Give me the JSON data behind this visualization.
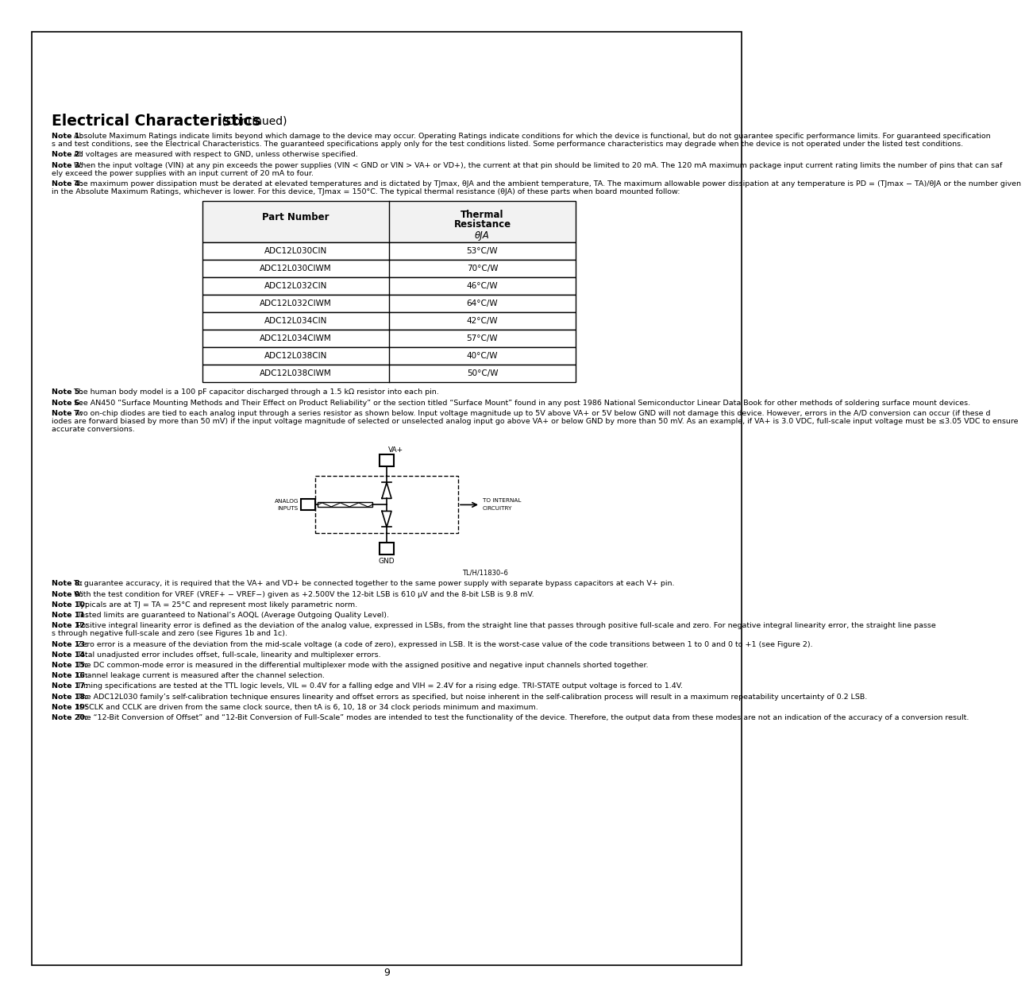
{
  "title_bold": "Electrical Characteristics",
  "title_normal": " (Continued)",
  "page_number": "9",
  "bg_color": "#ffffff",
  "border_color": "#000000",
  "table_rows": [
    [
      "ADC12L030CIN",
      "53°C/W"
    ],
    [
      "ADC12L030CIWM",
      "70°C/W"
    ],
    [
      "ADC12L032CIN",
      "46°C/W"
    ],
    [
      "ADC12L032CIWM",
      "64°C/W"
    ],
    [
      "ADC12L034CIN",
      "42°C/W"
    ],
    [
      "ADC12L034CIWM",
      "57°C/W"
    ],
    [
      "ADC12L038CIN",
      "40°C/W"
    ],
    [
      "ADC12L038CIWM",
      "50°C/W"
    ]
  ],
  "circuit_label": "TL/H/11830–6",
  "note1_label": "Note 1:",
  "note1_text": " Absolute Maximum Ratings indicate limits beyond which damage to the device may occur. Operating Ratings indicate conditions for which the device is functional, but do not guarantee specific performance limits. For guaranteed specifications and test conditions, see the Electrical Characteristics. The guaranteed specifications apply only for the test conditions listed. Some performance characteristics may degrade when the device is not operated under the listed test conditions.",
  "note2_label": "Note 2:",
  "note2_text": " All voltages are measured with respect to GND, unless otherwise specified.",
  "note3_label": "Note 3:",
  "note3_text": " When the input voltage (VIN) at any pin exceeds the power supplies (VIN < GND or VIN > VA+ or VD+), the current at that pin should be limited to 20 mA. The 120 mA maximum package input current rating limits the number of pins that can safely exceed the power supplies with an input current of 20 mA to four.",
  "note4_label": "Note 4:",
  "note4_text": " The maximum power dissipation must be derated at elevated temperatures and is dictated by TJmax, θJA and the ambient temperature, TA. The maximum allowable power dissipation at any temperature is PD = (TJmax − TA)/θJA or the number given in the Absolute Maximum Ratings, whichever is lower. For this device, TJmax = 150°C. The typical thermal resistance (θJA) of these parts when board mounted follow:",
  "note5_label": "Note 5:",
  "note5_text": " The human body model is a 100 pF capacitor discharged through a 1.5 kΩ resistor into each pin.",
  "note6_label": "Note 6:",
  "note6_text": " See AN450 “Surface Mounting Methods and Their Effect on Product Reliability” or the section titled “Surface Mount” found in any post 1986 National Semiconductor Linear Data Book for other methods of soldering surface mount devices.",
  "note7_label": "Note 7:",
  "note7_text": " Two on-chip diodes are tied to each analog input through a series resistor as shown below. Input voltage magnitude up to 5V above VA+ or 5V below GND will not damage this device. However, errors in the A/D conversion can occur (if these diodes are forward biased by more than 50 mV) if the input voltage magnitude of selected or unselected analog input go above VA+ or below GND by more than 50 mV. As an example, if VA+ is 3.0 VDC, full-scale input voltage must be ≤3.05 VDC to ensure accurate conversions.",
  "note8_label": "Note 8:",
  "note8_text": " To guarantee accuracy, it is required that the VA+ and VD+ be connected together to the same power supply with separate bypass capacitors at each V+ pin.",
  "note9_label": "Note 9:",
  "note9_text": " With the test condition for VREF (VREF+ − VREF−) given as +2.500V the 12-bit LSB is 610 μV and the 8-bit LSB is 9.8 mV.",
  "note10_label": "Note 10:",
  "note10_text": " Typicals are at TJ = TA = 25°C and represent most likely parametric norm.",
  "note11_label": "Note 11:",
  "note11_text": " Tested limits are guaranteed to National’s AOQL (Average Outgoing Quality Level).",
  "note12_label": "Note 12:",
  "note12_text": " Positive integral linearity error is defined as the deviation of the analog value, expressed in LSBs, from the straight line that passes through positive full-scale and zero. For negative integral linearity error, the straight line passes through negative full-scale and zero (see Figures 1b and 1c).",
  "note13_label": "Note 13:",
  "note13_text": " Zero error is a measure of the deviation from the mid-scale voltage (a code of zero), expressed in LSB. It is the worst-case value of the code transitions between 1 to 0 and 0 to +1 (see Figure 2).",
  "note14_label": "Note 14:",
  "note14_text": " Total unadjusted error includes offset, full-scale, linearity and multiplexer errors.",
  "note15_label": "Note 15:",
  "note15_text": " The DC common-mode error is measured in the differential multiplexer mode with the assigned positive and negative input channels shorted together.",
  "note16_label": "Note 16:",
  "note16_text": " Channel leakage current is measured after the channel selection.",
  "note17_label": "Note 17:",
  "note17_text": " Timing specifications are tested at the TTL logic levels, VIL = 0.4V for a falling edge and VIH = 2.4V for a rising edge. TRI-STATE output voltage is forced to 1.4V.",
  "note18_label": "Note 18:",
  "note18_text": " The ADC12L030 family’s self-calibration technique ensures linearity and offset errors as specified, but noise inherent in the self-calibration process will result in a maximum repeatability uncertainty of 0.2 LSB.",
  "note19_label": "Note 19:",
  "note19_text": " If SCLK and CCLK are driven from the same clock source, then tA is 6, 10, 18 or 34 clock periods minimum and maximum.",
  "note20_label": "Note 20:",
  "note20_text": " The “12-Bit Conversion of Offset” and “12-Bit Conversion of Full-Scale” modes are intended to test the functionality of the device. Therefore, the output data from these modes are not an indication of the accuracy of a conversion result."
}
